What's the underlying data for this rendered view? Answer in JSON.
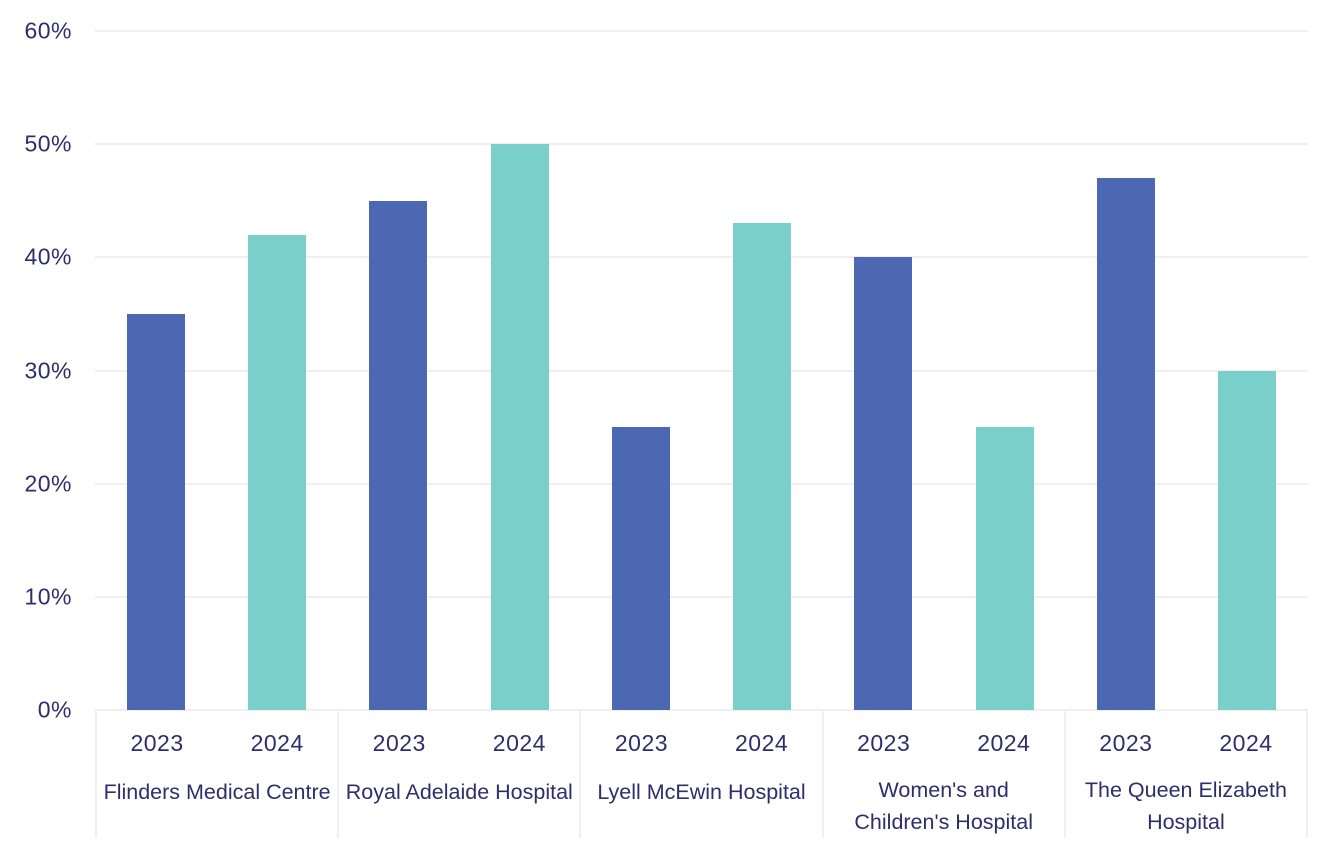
{
  "colors": {
    "series_2023": "#4c68b2",
    "series_2024": "#7bcfcb",
    "axis_text": "#2d2e6b",
    "gridline": "#f1eff1",
    "background": "#ffffff"
  },
  "y_axis": {
    "tick_labels": [
      "0%",
      "10%",
      "20%",
      "30%",
      "40%",
      "50%",
      "60%"
    ],
    "min": 0,
    "max": 60,
    "step": 10,
    "unit": "%"
  },
  "chart_data": {
    "type": "bar",
    "categories": [
      "Flinders Medical Centre",
      "Royal Adelaide Hospital",
      "Lyell McEwin Hospital",
      "Women's and Children's Hospital",
      "The Queen Elizabeth Hospital"
    ],
    "series": [
      {
        "name": "2023",
        "color": "#4c68b2",
        "values": [
          35,
          45,
          25,
          40,
          47
        ]
      },
      {
        "name": "2024",
        "color": "#7bcfcb",
        "values": [
          42,
          50,
          43,
          25,
          30
        ]
      }
    ],
    "title": "",
    "xlabel": "",
    "ylabel": "",
    "ylim": [
      0,
      60
    ],
    "grid": "horizontal",
    "legend": "none"
  }
}
